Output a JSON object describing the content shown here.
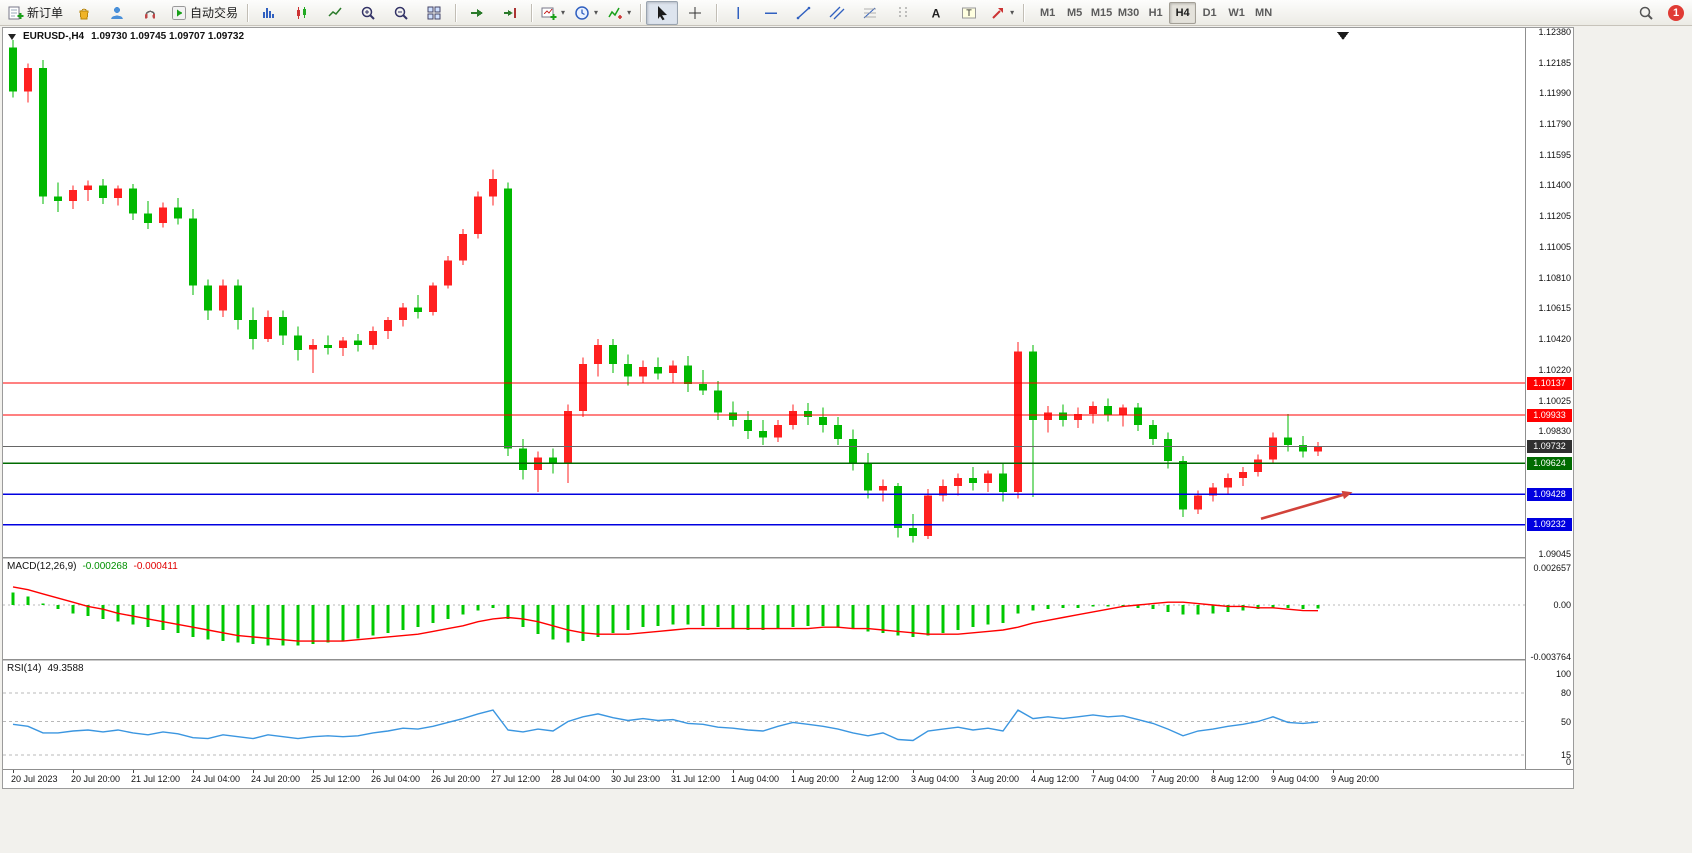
{
  "toolbar": {
    "buttons": [
      {
        "name": "new-order-button",
        "icon": "neworder",
        "label": "新订单"
      },
      {
        "name": "market-button",
        "icon": "market"
      },
      {
        "name": "community-button",
        "icon": "community"
      },
      {
        "name": "support-button",
        "icon": "headset"
      },
      {
        "name": "auto-trading-button",
        "icon": "autotrade",
        "label": "自动交易"
      },
      {
        "sep": true
      },
      {
        "name": "bar-chart-button",
        "icon": "bars"
      },
      {
        "name": "candlestick-chart-button",
        "icon": "candles"
      },
      {
        "name": "line-chart-button",
        "icon": "linechart"
      },
      {
        "name": "zoom-in-button",
        "icon": "zoomin"
      },
      {
        "name": "zoom-out-button",
        "icon": "zoomout"
      },
      {
        "name": "tile-windows-button",
        "icon": "tile"
      },
      {
        "sep": true
      },
      {
        "name": "auto-scroll-button",
        "icon": "autoscroll"
      },
      {
        "name": "chart-shift-button",
        "icon": "shift"
      },
      {
        "sep": true
      },
      {
        "name": "new-chart-button",
        "icon": "newchart",
        "dropdown": true
      },
      {
        "name": "profiles-button",
        "icon": "clock",
        "dropdown": true
      },
      {
        "name": "indicators-button",
        "icon": "indicators",
        "dropdown": true
      },
      {
        "sep": true
      },
      {
        "name": "cursor-button",
        "icon": "cursor",
        "pressed": true
      },
      {
        "name": "crosshair-button",
        "icon": "crosshair"
      },
      {
        "sep": true
      },
      {
        "name": "vertical-line-button",
        "icon": "vline"
      },
      {
        "name": "horizontal-line-button",
        "icon": "hline"
      },
      {
        "name": "trendline-button",
        "icon": "tline"
      },
      {
        "name": "equidistant-channel-button",
        "icon": "channel"
      },
      {
        "name": "fibonacci-button",
        "icon": "fibo"
      },
      {
        "name": "period-separators-button",
        "icon": "periods"
      },
      {
        "name": "text-button",
        "icon": "textA"
      },
      {
        "name": "text-label-button",
        "icon": "labelT"
      },
      {
        "name": "arrows-button",
        "icon": "arrows",
        "dropdown": true
      },
      {
        "sep": true
      }
    ],
    "timeframes": [
      "M1",
      "M5",
      "M15",
      "M30",
      "H1",
      "H4",
      "D1",
      "W1",
      "MN"
    ],
    "active_timeframe": "H4",
    "notification_count": "1"
  },
  "chart": {
    "symbol_period": "EURUSD-,H4",
    "ohlc": "1.09730 1.09745 1.09707 1.09732",
    "price_ticks": [
      "1.12380",
      "1.12185",
      "1.11990",
      "1.11790",
      "1.11595",
      "1.11400",
      "1.11205",
      "1.11005",
      "1.10810",
      "1.10615",
      "1.10420",
      "1.10220",
      "1.10025",
      "1.09830",
      "1.09045"
    ]
  },
  "colors": {
    "up": "#ff2020",
    "down": "#00b800",
    "macd_hist": "#00c800",
    "macd_signal": "#ff0000",
    "rsi_line": "#3b96e0",
    "level_dash": "#b8b8b8",
    "arrow": "#d2423a"
  },
  "chart_data": [
    {
      "type": "candlestick",
      "name": "EURUSD H4",
      "ylim": [
        1.09045,
        1.1238
      ],
      "x_labels": [
        "20 Jul 2023",
        "20 Jul 20:00",
        "21 Jul 12:00",
        "24 Jul 04:00",
        "24 Jul 20:00",
        "25 Jul 12:00",
        "26 Jul 04:00",
        "26 Jul 20:00",
        "27 Jul 12:00",
        "28 Jul 04:00",
        "30 Jul 23:00",
        "31 Jul 12:00",
        "1 Aug 04:00",
        "1 Aug 20:00",
        "2 Aug 12:00",
        "3 Aug 04:00",
        "3 Aug 20:00",
        "4 Aug 12:00",
        "7 Aug 04:00",
        "7 Aug 20:00",
        "8 Aug 12:00",
        "9 Aug 04:00",
        "9 Aug 20:00"
      ],
      "candles": [
        [
          1.1228,
          1.1233,
          1.1196,
          1.12
        ],
        [
          1.12,
          1.1218,
          1.1193,
          1.1215
        ],
        [
          1.1215,
          1.122,
          1.1128,
          1.1133
        ],
        [
          1.1133,
          1.1142,
          1.1123,
          1.113
        ],
        [
          1.113,
          1.114,
          1.1125,
          1.1137
        ],
        [
          1.1137,
          1.1143,
          1.113,
          1.114
        ],
        [
          1.114,
          1.1144,
          1.1128,
          1.1132
        ],
        [
          1.1132,
          1.114,
          1.1127,
          1.1138
        ],
        [
          1.1138,
          1.1141,
          1.1118,
          1.1122
        ],
        [
          1.1122,
          1.113,
          1.1112,
          1.1116
        ],
        [
          1.1116,
          1.1129,
          1.1113,
          1.1126
        ],
        [
          1.1126,
          1.1132,
          1.1115,
          1.1119
        ],
        [
          1.1119,
          1.1125,
          1.107,
          1.1076
        ],
        [
          1.1076,
          1.108,
          1.1054,
          1.106
        ],
        [
          1.106,
          1.108,
          1.1056,
          1.1076
        ],
        [
          1.1076,
          1.108,
          1.1048,
          1.1054
        ],
        [
          1.1054,
          1.1062,
          1.1035,
          1.1042
        ],
        [
          1.1042,
          1.106,
          1.104,
          1.1056
        ],
        [
          1.1056,
          1.106,
          1.1038,
          1.1044
        ],
        [
          1.1044,
          1.105,
          1.1028,
          1.1035
        ],
        [
          1.1035,
          1.1042,
          1.102,
          1.1038
        ],
        [
          1.1038,
          1.1044,
          1.1032,
          1.1036
        ],
        [
          1.1036,
          1.1043,
          1.1031,
          1.1041
        ],
        [
          1.1041,
          1.1045,
          1.1034,
          1.1038
        ],
        [
          1.1038,
          1.105,
          1.1035,
          1.1047
        ],
        [
          1.1047,
          1.1056,
          1.1042,
          1.1054
        ],
        [
          1.1054,
          1.1065,
          1.105,
          1.1062
        ],
        [
          1.1062,
          1.107,
          1.1055,
          1.1059
        ],
        [
          1.1059,
          1.1078,
          1.1057,
          1.1076
        ],
        [
          1.1076,
          1.1095,
          1.1074,
          1.1092
        ],
        [
          1.1092,
          1.1112,
          1.1089,
          1.1109
        ],
        [
          1.1109,
          1.1136,
          1.1106,
          1.1133
        ],
        [
          1.1133,
          1.115,
          1.1127,
          1.1144
        ],
        [
          1.1138,
          1.1142,
          1.0967,
          1.0972
        ],
        [
          1.0972,
          1.0978,
          1.0952,
          1.0958
        ],
        [
          1.0958,
          1.097,
          1.0944,
          1.0966
        ],
        [
          1.0966,
          1.0972,
          1.0956,
          1.0962
        ],
        [
          1.0962,
          1.1,
          1.095,
          1.0996
        ],
        [
          1.0996,
          1.103,
          1.0992,
          1.1026
        ],
        [
          1.1026,
          1.1042,
          1.1018,
          1.1038
        ],
        [
          1.1038,
          1.1042,
          1.102,
          1.1026
        ],
        [
          1.1026,
          1.1032,
          1.1012,
          1.1018
        ],
        [
          1.1018,
          1.1028,
          1.1014,
          1.1024
        ],
        [
          1.1024,
          1.103,
          1.1016,
          1.102
        ],
        [
          1.102,
          1.1028,
          1.1014,
          1.1025
        ],
        [
          1.1025,
          1.1031,
          1.1008,
          1.1013
        ],
        [
          1.1013,
          1.1022,
          1.1006,
          1.1009
        ],
        [
          1.1009,
          1.1015,
          1.099,
          1.0995
        ],
        [
          1.0995,
          1.1002,
          1.0986,
          1.099
        ],
        [
          1.099,
          1.0996,
          1.0978,
          1.0983
        ],
        [
          1.0983,
          1.099,
          1.0974,
          1.0979
        ],
        [
          1.0979,
          1.099,
          1.0976,
          1.0987
        ],
        [
          1.0987,
          1.1,
          1.0984,
          1.0996
        ],
        [
          1.0996,
          1.1001,
          1.0987,
          1.0992
        ],
        [
          1.0992,
          1.0998,
          1.0982,
          1.0987
        ],
        [
          1.0987,
          1.0992,
          1.0974,
          1.0978
        ],
        [
          1.0978,
          1.0984,
          1.0958,
          1.0963
        ],
        [
          1.0963,
          1.0969,
          1.094,
          1.0945
        ],
        [
          1.0945,
          1.0952,
          1.0938,
          1.0948
        ],
        [
          1.0948,
          1.095,
          1.0915,
          1.0921
        ],
        [
          1.0921,
          1.093,
          1.0912,
          1.0916
        ],
        [
          1.0916,
          1.0946,
          1.0914,
          1.0942
        ],
        [
          1.0942,
          1.0952,
          1.0938,
          1.0948
        ],
        [
          1.0948,
          1.0956,
          1.0942,
          1.0953
        ],
        [
          1.0953,
          1.096,
          1.0945,
          1.095
        ],
        [
          1.095,
          1.0958,
          1.0944,
          1.0956
        ],
        [
          1.0956,
          1.0962,
          1.0938,
          1.0944
        ],
        [
          1.0944,
          1.104,
          1.094,
          1.1034
        ],
        [
          1.1034,
          1.1038,
          1.0941,
          1.099
        ],
        [
          1.099,
          1.0999,
          1.0982,
          1.0995
        ],
        [
          1.0995,
          1.1,
          1.0986,
          1.099
        ],
        [
          1.099,
          1.0998,
          1.0985,
          1.0994
        ],
        [
          1.0994,
          1.1002,
          1.0988,
          1.0999
        ],
        [
          1.0999,
          1.1004,
          1.0989,
          1.0993
        ],
        [
          1.0993,
          1.1,
          1.0986,
          1.0998
        ],
        [
          1.0998,
          1.1001,
          1.0983,
          1.0987
        ],
        [
          1.0987,
          1.099,
          1.0974,
          1.0978
        ],
        [
          1.0978,
          1.0982,
          1.0959,
          1.0964
        ],
        [
          1.0964,
          1.0967,
          1.0928,
          1.0933
        ],
        [
          1.0933,
          1.0945,
          1.093,
          1.0942
        ],
        [
          1.0942,
          1.095,
          1.0938,
          1.0947
        ],
        [
          1.0947,
          1.0956,
          1.0943,
          1.0953
        ],
        [
          1.0953,
          1.096,
          1.0948,
          1.0957
        ],
        [
          1.0957,
          1.0968,
          1.0954,
          1.0965
        ],
        [
          1.0965,
          1.0982,
          1.0962,
          1.0979
        ],
        [
          1.0979,
          1.0994,
          1.097,
          1.0974
        ],
        [
          1.0974,
          1.098,
          1.0966,
          1.097
        ],
        [
          1.097,
          1.0976,
          1.0967,
          1.09732
        ]
      ],
      "hlines": [
        {
          "price": 1.10137,
          "label": "1.10137",
          "color": "#ff0000",
          "width": 1
        },
        {
          "price": 1.09933,
          "label": "1.09933",
          "color": "#ff0000",
          "width": 1
        },
        {
          "price": 1.09732,
          "label": "1.09732",
          "color": "#666666",
          "box": "#303030",
          "width": 1
        },
        {
          "price": 1.09624,
          "label": "1.09624",
          "color": "#006b00",
          "width": 1.4
        },
        {
          "price": 1.09428,
          "label": "1.09428",
          "color": "#0000e0",
          "width": 1.4
        },
        {
          "price": 1.09232,
          "label": "1.09232",
          "color": "#0000e0",
          "width": 1.4
        }
      ],
      "arrow": {
        "from_bar": 83.2,
        "from_price": 1.0927,
        "to_bar": 89.3,
        "to_price": 1.0944
      }
    },
    {
      "type": "bar",
      "name": "MACD(12,26,9)",
      "current": "-0.000268",
      "current_signal": "-0.000411",
      "ylim": [
        -0.003764,
        0.002657
      ],
      "scale_labels": [
        "0.002657",
        "0.00",
        "-0.003764"
      ],
      "values": [
        0.0009,
        0.0006,
        0.0001,
        -0.0003,
        -0.0006,
        -0.0008,
        -0.001,
        -0.0012,
        -0.0014,
        -0.0016,
        -0.0018,
        -0.002,
        -0.0023,
        -0.0025,
        -0.0026,
        -0.0027,
        -0.0028,
        -0.0029,
        -0.0029,
        -0.0029,
        -0.0028,
        -0.0027,
        -0.0026,
        -0.0024,
        -0.0022,
        -0.002,
        -0.0018,
        -0.0016,
        -0.0013,
        -0.001,
        -0.0007,
        -0.0004,
        -0.0002,
        -0.001,
        -0.0016,
        -0.0021,
        -0.0025,
        -0.0027,
        -0.0026,
        -0.0023,
        -0.002,
        -0.0018,
        -0.0016,
        -0.0015,
        -0.0014,
        -0.0014,
        -0.0015,
        -0.0016,
        -0.0017,
        -0.0018,
        -0.0018,
        -0.0017,
        -0.0016,
        -0.0015,
        -0.0015,
        -0.0016,
        -0.0017,
        -0.0019,
        -0.002,
        -0.0022,
        -0.0023,
        -0.0022,
        -0.002,
        -0.0018,
        -0.0016,
        -0.0014,
        -0.0013,
        -0.0006,
        -0.0004,
        -0.0003,
        -0.0002,
        -0.0002,
        -0.0001,
        -0.0001,
        -0.0001,
        -0.0002,
        -0.0003,
        -0.0005,
        -0.0007,
        -0.0007,
        -0.0006,
        -0.0005,
        -0.0004,
        -0.0003,
        -0.0002,
        -0.0002,
        -0.0003,
        -0.000268
      ],
      "signal": [
        0.0013,
        0.0011,
        0.0008,
        0.0005,
        0.0002,
        -0.0001,
        -0.0003,
        -0.0006,
        -0.0008,
        -0.001,
        -0.0012,
        -0.0014,
        -0.0016,
        -0.0018,
        -0.002,
        -0.0022,
        -0.0023,
        -0.0024,
        -0.0025,
        -0.0026,
        -0.0026,
        -0.0026,
        -0.0026,
        -0.0025,
        -0.0024,
        -0.0023,
        -0.0022,
        -0.0021,
        -0.0019,
        -0.0017,
        -0.0015,
        -0.0012,
        -0.001,
        -0.0009,
        -0.001,
        -0.0012,
        -0.0015,
        -0.0018,
        -0.002,
        -0.0021,
        -0.0021,
        -0.0021,
        -0.002,
        -0.0019,
        -0.0018,
        -0.0017,
        -0.0017,
        -0.0017,
        -0.0017,
        -0.0017,
        -0.0017,
        -0.0017,
        -0.0017,
        -0.0017,
        -0.0016,
        -0.0016,
        -0.0017,
        -0.0017,
        -0.0018,
        -0.0019,
        -0.002,
        -0.0021,
        -0.0021,
        -0.0021,
        -0.002,
        -0.0019,
        -0.0018,
        -0.0016,
        -0.0013,
        -0.0011,
        -0.0009,
        -0.0007,
        -0.0005,
        -0.0003,
        -0.0001,
        0.0,
        0.0001,
        0.0002,
        0.0002,
        0.0001,
        0.0,
        -0.0001,
        -0.0001,
        -0.0002,
        -0.0002,
        -0.0003,
        -0.0004,
        -0.000411
      ]
    },
    {
      "type": "line",
      "name": "RSI(14)",
      "current": "49.3588",
      "ylim": [
        0,
        100
      ],
      "levels": [
        80,
        50,
        15
      ],
      "scale_labels": [
        "100",
        "80",
        "50",
        "15",
        "0"
      ],
      "values": [
        47,
        45,
        38,
        38,
        40,
        41,
        39,
        41,
        38,
        36,
        39,
        37,
        33,
        32,
        36,
        34,
        32,
        36,
        34,
        32,
        34,
        35,
        34,
        35,
        38,
        40,
        43,
        42,
        45,
        49,
        53,
        58,
        62,
        41,
        39,
        42,
        40,
        50,
        55,
        58,
        54,
        51,
        53,
        51,
        52,
        48,
        47,
        44,
        43,
        41,
        40,
        45,
        49,
        47,
        45,
        42,
        38,
        35,
        38,
        31,
        30,
        40,
        42,
        44,
        41,
        43,
        40,
        62,
        53,
        55,
        53,
        55,
        57,
        55,
        56,
        52,
        48,
        42,
        35,
        40,
        42,
        45,
        47,
        50,
        55,
        49,
        48,
        49.36
      ]
    }
  ]
}
